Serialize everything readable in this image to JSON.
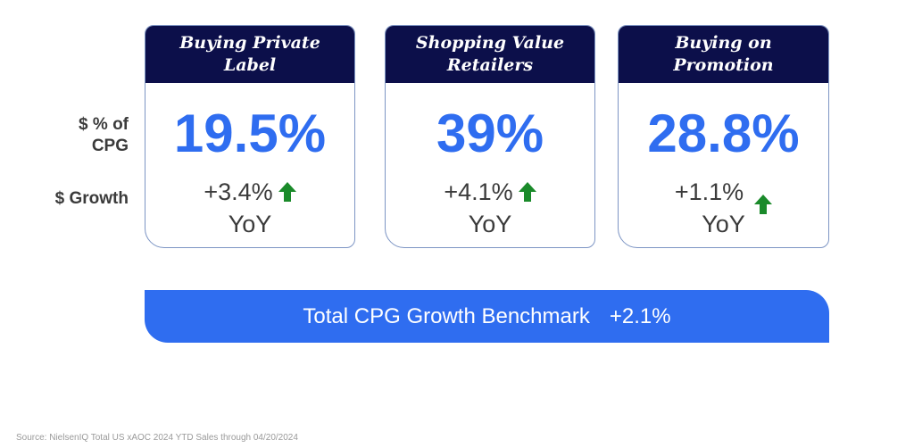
{
  "row_labels": {
    "pct_line1": "$ % of",
    "pct_line2": "CPG",
    "growth": "$ Growth"
  },
  "cards": [
    {
      "title_line1": "Buying Private",
      "title_line2": "Label",
      "value": "19.5%",
      "growth": "+3.4%",
      "growth_suffix": "YoY",
      "trend_icon": "arrow-up-icon"
    },
    {
      "title_line1": "Shopping Value",
      "title_line2": "Retailers",
      "value": "39%",
      "growth": "+4.1%",
      "growth_suffix": "YoY",
      "trend_icon": "arrow-up-icon"
    },
    {
      "title_line1": "Buying on",
      "title_line2": "Promotion",
      "value": "28.8%",
      "growth": "+1.1%",
      "growth_suffix": "YoY",
      "trend_icon": "arrow-up-icon"
    }
  ],
  "benchmark": {
    "label": "Total CPG Growth Benchmark",
    "value": "+2.1%"
  },
  "source": "Source: NielsenIQ Total US xAOC 2024 YTD Sales through 04/20/2024",
  "colors": {
    "header_bg": "#0c0f4a",
    "accent_blue": "#2f6df0",
    "arrow_green": "#1a8a2a",
    "card_border": "#7d95c4"
  }
}
